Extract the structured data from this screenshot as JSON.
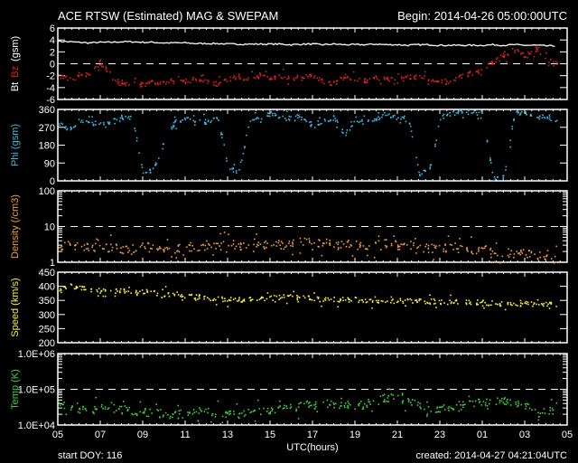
{
  "header": {
    "title": "ACE RTSW (Estimated) MAG & SWEPAM",
    "begin": "Begin: 2014-04-26 05:00:00UTC"
  },
  "footer": {
    "xlabel": "UTC(hours)",
    "start_doy": "start DOY: 116",
    "created": "created: 2014-04-27 04:21:04UTC"
  },
  "colors": {
    "bt": "#ffffff",
    "bz": "#e0201a",
    "phi": "#40b8e0",
    "density": "#f0a040",
    "speed": "#f8f040",
    "temp": "#40d040",
    "axis": "#ffffff"
  },
  "chart_data": [
    {
      "type": "scatter",
      "name": "mag-bt-bz",
      "ylabel_parts": [
        "Bt",
        "Bz",
        "(gsm)"
      ],
      "ylim": [
        -6,
        6
      ],
      "scale": "linear",
      "yticks": [
        "6",
        "4",
        "2",
        "0",
        "-2",
        "-4",
        "-6"
      ],
      "ytick_values": [
        6,
        4,
        2,
        0,
        -2,
        -4,
        -6
      ],
      "dashed_at": 0,
      "x_hours_step": 0.5,
      "series": [
        {
          "name": "Bt",
          "color_key": "bt",
          "style": "line",
          "values": [
            3.8,
            3.7,
            3.6,
            3.5,
            3.6,
            3.6,
            3.7,
            3.7,
            3.6,
            3.6,
            3.5,
            3.5,
            3.5,
            3.4,
            3.4,
            3.4,
            3.3,
            3.3,
            3.3,
            3.3,
            3.3,
            3.3,
            3.2,
            3.3,
            3.3,
            3.2,
            3.3,
            3.2,
            3.2,
            3.2,
            3.3,
            3.2,
            3.2,
            3.1,
            3.2,
            3.2,
            3.1,
            3.1,
            3.1,
            3.1,
            3.1,
            3.2,
            3.1,
            3.2,
            3.1,
            3.1,
            3.0,
            3.0
          ]
        },
        {
          "name": "Bz",
          "color_key": "bz",
          "style": "dots",
          "values": [
            -2,
            -2.5,
            -1.5,
            -1.8,
            0.5,
            -2,
            -3.5,
            -3.3,
            -3.3,
            -3,
            -3,
            -3,
            -2.8,
            -2.5,
            -3,
            -3.3,
            -2.5,
            -2,
            -2.5,
            -2,
            -2.2,
            -2,
            -2.2,
            -2.3,
            -1.8,
            -2.8,
            -3.2,
            -2,
            -2.5,
            -2.7,
            -2.2,
            -2.5,
            -2.8,
            -2,
            -2.2,
            -2.5,
            -3,
            -2.8,
            -2,
            -1.5,
            -0.8,
            0.5,
            1.5,
            2.3,
            1.5,
            2.5,
            1,
            0
          ]
        }
      ]
    },
    {
      "type": "scatter",
      "name": "phi",
      "ylabel_parts": [
        "Phi (gsm)"
      ],
      "ylim": [
        0,
        360
      ],
      "scale": "linear",
      "yticks": [
        "360",
        "270",
        "180",
        "90",
        "0"
      ],
      "ytick_values": [
        360,
        270,
        180,
        90,
        0
      ],
      "x_hours_step": 0.5,
      "series": [
        {
          "name": "Phi",
          "color_key": "phi",
          "style": "dots",
          "values": [
            300,
            260,
            310,
            290,
            300,
            300,
            320,
            320,
            40,
            60,
            200,
            300,
            320,
            310,
            300,
            320,
            80,
            40,
            300,
            320,
            340,
            320,
            320,
            330,
            280,
            310,
            320,
            240,
            300,
            300,
            320,
            340,
            320,
            330,
            40,
            60,
            320,
            340,
            350,
            350,
            330,
            10,
            20,
            350,
            340,
            330,
            320,
            310
          ]
        }
      ]
    },
    {
      "type": "scatter",
      "name": "density",
      "ylabel_parts": [
        "Density (/cm3)"
      ],
      "ylim": [
        1,
        100
      ],
      "scale": "log",
      "yticks": [
        "100",
        "10",
        "1"
      ],
      "ytick_values": [
        100,
        10,
        1
      ],
      "dashed_at": 10,
      "x_hours_step": 0.5,
      "series": [
        {
          "name": "Density",
          "color_key": "density",
          "style": "dots",
          "values": [
            3,
            3,
            2.8,
            3,
            2.5,
            2.8,
            2.4,
            2.5,
            2.8,
            2.6,
            2.3,
            2.5,
            2.8,
            2.8,
            3.2,
            3,
            3.5,
            3,
            3.5,
            3.2,
            3.2,
            3.6,
            3.5,
            4,
            3.8,
            3.6,
            3.6,
            3.2,
            3.2,
            3,
            3.3,
            3.6,
            3,
            3.2,
            2.8,
            2.5,
            2.6,
            2.5,
            2.6,
            2.3,
            2.4,
            2,
            2,
            1.8,
            1.8,
            1.6,
            1.5,
            1.5
          ]
        }
      ]
    },
    {
      "type": "scatter",
      "name": "speed",
      "ylabel_parts": [
        "Speed (km/s)"
      ],
      "ylim": [
        200,
        450
      ],
      "scale": "linear",
      "yticks": [
        "450",
        "400",
        "350",
        "300",
        "250",
        "200"
      ],
      "ytick_values": [
        450,
        400,
        350,
        300,
        250,
        200
      ],
      "x_hours_step": 0.5,
      "series": [
        {
          "name": "Speed",
          "color_key": "speed",
          "style": "dots",
          "values": [
            380,
            410,
            395,
            390,
            385,
            385,
            385,
            375,
            385,
            380,
            375,
            375,
            365,
            365,
            360,
            360,
            355,
            355,
            355,
            360,
            360,
            365,
            365,
            360,
            360,
            355,
            355,
            355,
            355,
            350,
            350,
            350,
            350,
            352,
            350,
            348,
            350,
            348,
            345,
            345,
            345,
            342,
            342,
            340,
            340,
            338,
            340,
            338
          ]
        }
      ]
    },
    {
      "type": "scatter",
      "name": "temp",
      "ylabel_parts": [
        "Temp (K)"
      ],
      "ylim": [
        10000,
        1000000
      ],
      "scale": "log",
      "yticks": [
        "1.0E+06",
        "1.0E+05",
        "1.0E+04"
      ],
      "ytick_values": [
        1000000,
        100000,
        10000
      ],
      "dashed_at": 100000,
      "x_hours_step": 0.5,
      "series": [
        {
          "name": "Temp",
          "color_key": "temp",
          "style": "dots",
          "values": [
            40000,
            35000,
            30000,
            25000,
            30000,
            30000,
            28000,
            25000,
            25000,
            22000,
            22000,
            20000,
            22000,
            25000,
            25000,
            22000,
            20000,
            20000,
            22000,
            25000,
            25000,
            30000,
            30000,
            35000,
            35000,
            40000,
            40000,
            40000,
            35000,
            40000,
            50000,
            60000,
            70000,
            50000,
            35000,
            30000,
            30000,
            30000,
            35000,
            40000,
            45000,
            45000,
            50000,
            40000,
            35000,
            30000,
            25000,
            25000
          ]
        }
      ]
    }
  ],
  "xaxis": {
    "range_hours": [
      0,
      24
    ],
    "tick_labels": [
      "05",
      "07",
      "09",
      "11",
      "13",
      "15",
      "17",
      "19",
      "21",
      "23",
      "01",
      "03",
      "05"
    ]
  }
}
